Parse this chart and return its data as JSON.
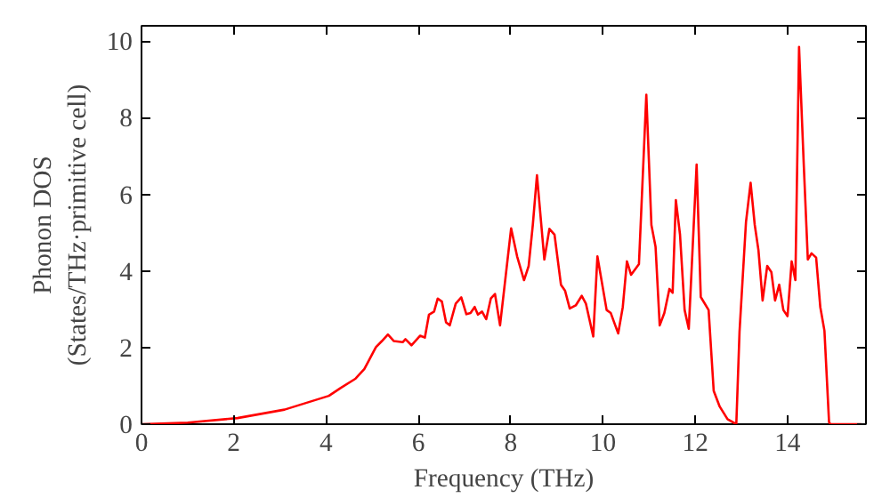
{
  "chart_data": {
    "type": "line",
    "xlabel": "Frequency (THz)",
    "ylabel": "Phonon DOS\n(States/THz·primitive cell)",
    "xlim": [
      0,
      15.7
    ],
    "ylim": [
      0,
      10.4
    ],
    "xticks": [
      0,
      2,
      4,
      6,
      8,
      10,
      12,
      14
    ],
    "yticks": [
      0,
      2,
      4,
      6,
      8,
      10
    ],
    "grid": false,
    "series": [
      {
        "color": "#ff0000",
        "x": [
          0,
          1.0,
          2.08,
          3.1,
          4.06,
          4.32,
          4.64,
          4.83,
          5.08,
          5.21,
          5.34,
          5.47,
          5.66,
          5.72,
          5.85,
          6.04,
          6.14,
          6.23,
          6.34,
          6.42,
          6.51,
          6.6,
          6.68,
          6.81,
          6.93,
          7.04,
          7.13,
          7.22,
          7.29,
          7.38,
          7.47,
          7.57,
          7.66,
          7.77,
          8.01,
          8.14,
          8.29,
          8.39,
          8.48,
          8.57,
          8.73,
          8.84,
          8.95,
          9.09,
          9.18,
          9.28,
          9.41,
          9.54,
          9.63,
          9.79,
          9.88,
          10.08,
          10.17,
          10.33,
          10.43,
          10.52,
          10.61,
          10.78,
          10.94,
          11.05,
          11.14,
          11.23,
          11.33,
          11.44,
          11.51,
          11.58,
          11.67,
          11.77,
          11.86,
          12.03,
          12.12,
          12.29,
          12.4,
          12.53,
          12.7,
          12.89,
          12.96,
          13.1,
          13.2,
          13.29,
          13.37,
          13.46,
          13.56,
          13.65,
          13.73,
          13.82,
          13.91,
          14.0,
          14.09,
          14.17,
          14.25,
          14.35,
          14.44,
          14.52,
          14.62,
          14.71,
          14.8,
          14.9,
          14.93,
          15.6
        ],
        "values": [
          0,
          0.04,
          0.16,
          0.38,
          0.74,
          0.95,
          1.19,
          1.44,
          2.01,
          2.17,
          2.34,
          2.17,
          2.14,
          2.22,
          2.06,
          2.31,
          2.26,
          2.86,
          2.94,
          3.28,
          3.2,
          2.66,
          2.58,
          3.15,
          3.31,
          2.87,
          2.9,
          3.06,
          2.86,
          2.94,
          2.74,
          3.28,
          3.4,
          2.58,
          5.11,
          4.38,
          3.76,
          4.13,
          5.2,
          6.5,
          4.3,
          5.1,
          4.95,
          3.64,
          3.48,
          3.02,
          3.1,
          3.35,
          3.15,
          2.29,
          4.38,
          2.98,
          2.9,
          2.37,
          3.06,
          4.25,
          3.9,
          4.18,
          8.6,
          5.2,
          4.63,
          2.58,
          2.9,
          3.53,
          3.43,
          5.85,
          4.95,
          2.98,
          2.49,
          6.78,
          3.32,
          2.98,
          0.87,
          0.46,
          0.13,
          0,
          2.42,
          5.28,
          6.3,
          5.2,
          4.54,
          3.23,
          4.13,
          3.97,
          3.23,
          3.64,
          2.98,
          2.82,
          4.25,
          3.76,
          9.85,
          6.83,
          4.3,
          4.46,
          4.35,
          3.06,
          2.44,
          0.05,
          0,
          0
        ]
      }
    ]
  }
}
